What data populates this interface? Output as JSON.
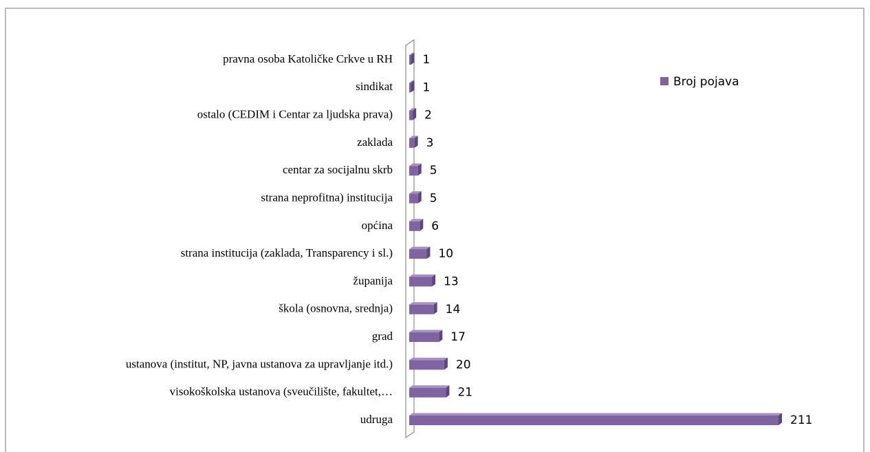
{
  "chart_data": {
    "type": "bar",
    "orientation": "horizontal",
    "categories": [
      "pravna osoba Katoličke Crkve u RH",
      "sindikat",
      "ostalo (CEDIM i Centar za ljudska prava)",
      "zaklada",
      "centar za socijalnu skrb",
      "strana neprofitna) institucija",
      "općina",
      "strana institucija (zaklada, Transparency i sl.)",
      "županija",
      "škola (osnovna, srednja)",
      "grad",
      "ustanova (institut, NP, javna ustanova za upravljanje itd.)",
      "visokoškolska ustanova (sveučilište, fakultet,…",
      "udruga"
    ],
    "series": [
      {
        "name": "Broj pojava",
        "color": "#8064a2",
        "values": [
          1,
          1,
          2,
          3,
          5,
          5,
          6,
          10,
          13,
          14,
          17,
          20,
          21,
          211
        ]
      }
    ],
    "legend": "right"
  }
}
